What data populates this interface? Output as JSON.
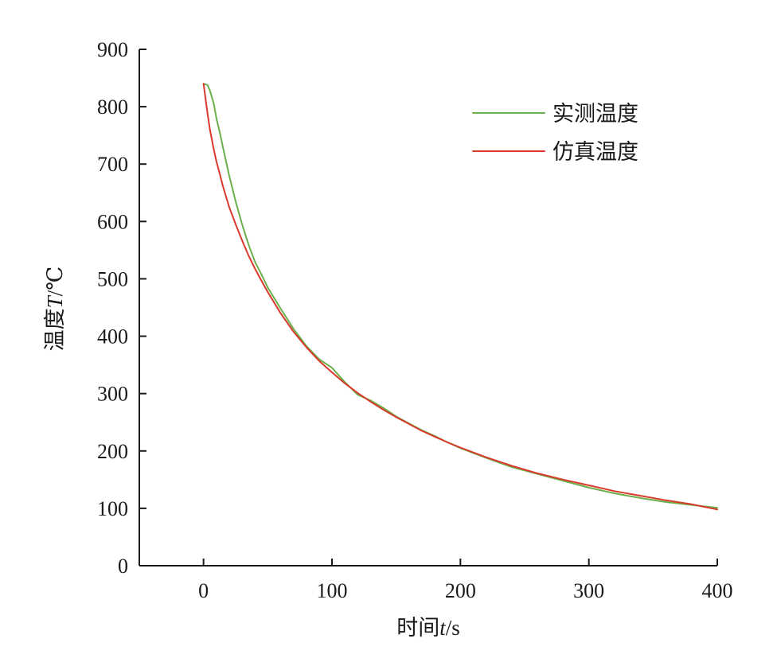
{
  "chart_data": {
    "type": "line",
    "xlabel": {
      "main": "时间",
      "var": "t",
      "unit": "/s"
    },
    "ylabel": {
      "main": "温度",
      "var": "T",
      "unit": "/℃"
    },
    "xlim": [
      -50,
      400
    ],
    "ylim": [
      0,
      900
    ],
    "xticks": [
      0,
      100,
      200,
      300,
      400
    ],
    "xtick_labels": [
      "0",
      "100",
      "200",
      "300",
      "400"
    ],
    "yticks": [
      0,
      100,
      200,
      300,
      400,
      500,
      600,
      700,
      800,
      900
    ],
    "ytick_labels": [
      "0",
      "100",
      "200",
      "300",
      "400",
      "500",
      "600",
      "700",
      "800",
      "900"
    ],
    "grid": false,
    "legend_position": "top-right",
    "series": [
      {
        "name": "实测温度",
        "color": "#6ab04c",
        "x": [
          0,
          3,
          5,
          8,
          10,
          13,
          15,
          20,
          25,
          30,
          35,
          40,
          45,
          50,
          60,
          70,
          80,
          90,
          100,
          110,
          120,
          130,
          140,
          150,
          160,
          170,
          180,
          190,
          200,
          220,
          240,
          260,
          280,
          300,
          320,
          340,
          360,
          380,
          400
        ],
        "y": [
          840,
          838,
          828,
          805,
          780,
          752,
          730,
          680,
          635,
          595,
          560,
          530,
          508,
          485,
          448,
          413,
          383,
          360,
          345,
          320,
          298,
          288,
          275,
          260,
          248,
          236,
          226,
          215,
          205,
          188,
          172,
          160,
          148,
          136,
          126,
          118,
          111,
          106,
          101
        ]
      },
      {
        "name": "仿真温度",
        "color": "#d93a2b",
        "x": [
          0,
          3,
          5,
          8,
          10,
          13,
          15,
          20,
          25,
          30,
          35,
          40,
          45,
          50,
          60,
          70,
          80,
          90,
          100,
          110,
          120,
          130,
          140,
          150,
          160,
          170,
          180,
          190,
          200,
          220,
          240,
          260,
          280,
          300,
          320,
          340,
          360,
          380,
          400
        ],
        "y": [
          840,
          790,
          760,
          725,
          705,
          680,
          662,
          625,
          595,
          567,
          541,
          518,
          497,
          477,
          440,
          408,
          381,
          357,
          337,
          318,
          301,
          286,
          272,
          259,
          247,
          235,
          225,
          215,
          206,
          189,
          174,
          161,
          150,
          140,
          130,
          122,
          114,
          107,
          98
        ]
      }
    ]
  }
}
